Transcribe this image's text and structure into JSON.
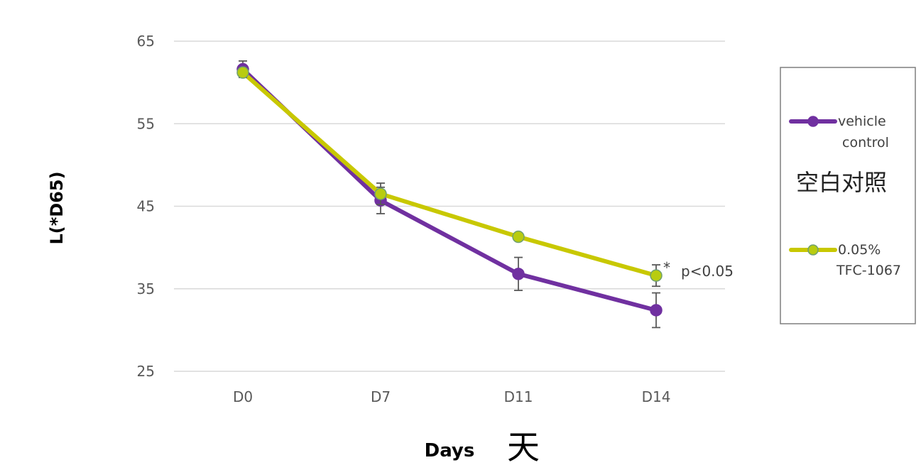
{
  "chart_data": {
    "type": "line",
    "categories": [
      "D0",
      "D7",
      "D11",
      "D14"
    ],
    "xlabel": "Days",
    "xlabel_cn": "天",
    "ylabel": "L(*D65)",
    "ylim": [
      25,
      65
    ],
    "yticks": [
      25,
      35,
      45,
      55,
      65
    ],
    "grid": true,
    "legend_position": "right",
    "series": [
      {
        "name": "vehicle control",
        "name_lines": [
          "vehicle",
          "control"
        ],
        "name_cn": "空白对照",
        "color": "#7030a0",
        "marker_color": "#7030a0",
        "values": [
          61.6,
          45.7,
          36.8,
          32.4
        ],
        "errors": [
          1.0,
          1.6,
          2.0,
          2.1
        ]
      },
      {
        "name": "0.05% TFC-1067",
        "name_lines": [
          "0.05%",
          "TFC-1067"
        ],
        "color": "#c8c800",
        "marker_color": "#b8cc10",
        "values": [
          61.2,
          46.5,
          41.3,
          36.6
        ],
        "errors": [
          0.6,
          1.3,
          0.4,
          1.3
        ]
      }
    ],
    "annotations": [
      {
        "star": "*",
        "text": "p<0.05",
        "category": "D14"
      }
    ]
  }
}
